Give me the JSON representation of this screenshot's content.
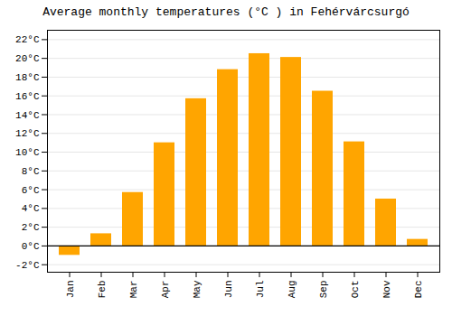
{
  "chart_data": {
    "type": "bar",
    "title": "Average monthly temperatures (°C ) in Fehérvárcsurgó",
    "categories": [
      "Jan",
      "Feb",
      "Mar",
      "Apr",
      "May",
      "Jun",
      "Jul",
      "Aug",
      "Sep",
      "Oct",
      "Nov",
      "Dec"
    ],
    "values": [
      -1.0,
      1.3,
      5.7,
      11.0,
      15.7,
      18.8,
      20.5,
      20.1,
      16.5,
      11.1,
      5.0,
      0.7
    ],
    "color": "#FFA500",
    "ylim": [
      -2.8,
      23.0
    ],
    "yticks": [
      {
        "value": -2,
        "label": "-2°C"
      },
      {
        "value": 0,
        "label": "0°C"
      },
      {
        "value": 2,
        "label": "2°C"
      },
      {
        "value": 4,
        "label": "4°C"
      },
      {
        "value": 6,
        "label": "6°C"
      },
      {
        "value": 8,
        "label": "8°C"
      },
      {
        "value": 10,
        "label": "10°C"
      },
      {
        "value": 12,
        "label": "12°C"
      },
      {
        "value": 14,
        "label": "14°C"
      },
      {
        "value": 16,
        "label": "16°C"
      },
      {
        "value": 18,
        "label": "18°C"
      },
      {
        "value": 20,
        "label": "20°C"
      },
      {
        "value": 22,
        "label": "22°C"
      }
    ],
    "grid": true
  }
}
